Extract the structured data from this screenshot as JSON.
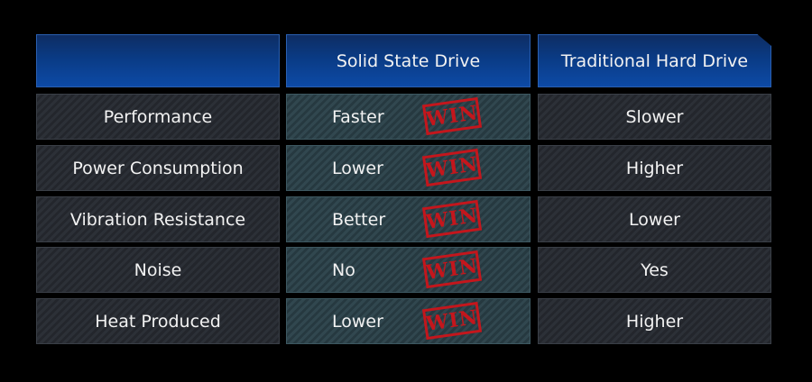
{
  "table": {
    "header": [
      "Solid State Drive",
      "Traditional Hard Drive"
    ],
    "badge": "WIN",
    "rows": [
      [
        "Performance",
        "Faster",
        "Slower"
      ],
      [
        "Power Consumption",
        "Lower",
        "Higher"
      ],
      [
        "Vibration Resistance",
        "Better",
        "Lower"
      ],
      [
        "Noise",
        "No",
        "Yes"
      ],
      [
        "Heat Produced",
        "Lower",
        "Higher"
      ]
    ]
  }
}
